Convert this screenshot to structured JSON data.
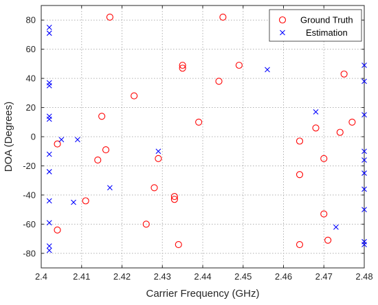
{
  "chart_data": {
    "type": "scatter",
    "xlabel": "Carrier Frequency (GHz)",
    "ylabel": "DOA (Degrees)",
    "xlim": [
      2.4,
      2.48
    ],
    "ylim": [
      -90,
      90
    ],
    "xticks": [
      "2.4",
      "2.41",
      "2.42",
      "2.43",
      "2.44",
      "2.45",
      "2.46",
      "2.47",
      "2.48"
    ],
    "xtick_values": [
      2.4,
      2.41,
      2.42,
      2.43,
      2.44,
      2.45,
      2.46,
      2.47,
      2.48
    ],
    "yticks": [
      "80",
      "60",
      "40",
      "20",
      "0",
      "-20",
      "-40",
      "-60",
      "-80"
    ],
    "ytick_values": [
      80,
      60,
      40,
      20,
      0,
      -20,
      -40,
      -60,
      -80
    ],
    "grid": true,
    "legend_position": "top-right",
    "series": [
      {
        "name": "Ground Truth",
        "marker": "circle",
        "color": "#ff0000",
        "points": [
          [
            2.404,
            -5
          ],
          [
            2.404,
            -64
          ],
          [
            2.411,
            -44
          ],
          [
            2.414,
            -16
          ],
          [
            2.415,
            14
          ],
          [
            2.416,
            -9
          ],
          [
            2.417,
            82
          ],
          [
            2.423,
            28
          ],
          [
            2.426,
            -60
          ],
          [
            2.428,
            -35
          ],
          [
            2.429,
            -15
          ],
          [
            2.433,
            -41
          ],
          [
            2.433,
            -43
          ],
          [
            2.434,
            -74
          ],
          [
            2.435,
            49
          ],
          [
            2.435,
            47
          ],
          [
            2.439,
            10
          ],
          [
            2.444,
            38
          ],
          [
            2.445,
            82
          ],
          [
            2.449,
            49
          ],
          [
            2.464,
            -3
          ],
          [
            2.464,
            -26
          ],
          [
            2.464,
            -74
          ],
          [
            2.468,
            6
          ],
          [
            2.47,
            -15
          ],
          [
            2.47,
            -53
          ],
          [
            2.471,
            -71
          ],
          [
            2.474,
            3
          ],
          [
            2.475,
            43
          ],
          [
            2.477,
            10
          ]
        ]
      },
      {
        "name": "Estimation",
        "marker": "x",
        "color": "#0000ff",
        "points": [
          [
            2.402,
            75
          ],
          [
            2.402,
            71
          ],
          [
            2.402,
            37
          ],
          [
            2.402,
            35
          ],
          [
            2.402,
            14
          ],
          [
            2.402,
            12
          ],
          [
            2.402,
            -12
          ],
          [
            2.402,
            -24
          ],
          [
            2.402,
            -44
          ],
          [
            2.402,
            -59
          ],
          [
            2.402,
            -75
          ],
          [
            2.402,
            -78
          ],
          [
            2.405,
            -2
          ],
          [
            2.408,
            -45
          ],
          [
            2.409,
            -2
          ],
          [
            2.417,
            -35
          ],
          [
            2.429,
            -10
          ],
          [
            2.456,
            46
          ],
          [
            2.468,
            17
          ],
          [
            2.473,
            -62
          ],
          [
            2.48,
            49
          ],
          [
            2.48,
            38
          ],
          [
            2.48,
            15
          ],
          [
            2.48,
            -10
          ],
          [
            2.48,
            -16
          ],
          [
            2.48,
            -25
          ],
          [
            2.48,
            -36
          ],
          [
            2.48,
            -50
          ],
          [
            2.48,
            -72
          ],
          [
            2.48,
            -74
          ]
        ]
      }
    ]
  }
}
